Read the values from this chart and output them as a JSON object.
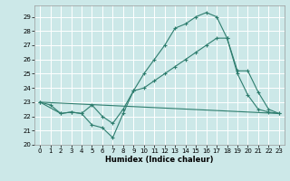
{
  "line1_x": [
    0,
    1,
    2,
    3,
    4,
    5,
    6,
    7,
    8,
    9,
    10,
    11,
    12,
    13,
    14,
    15,
    16,
    17,
    18,
    19,
    20,
    21,
    22,
    23
  ],
  "line1_y": [
    23.0,
    22.8,
    22.2,
    22.3,
    22.2,
    21.4,
    21.2,
    20.5,
    22.2,
    23.8,
    25.0,
    26.0,
    27.0,
    28.2,
    28.5,
    29.0,
    29.3,
    29.0,
    27.5,
    25.0,
    23.5,
    22.5,
    22.3,
    22.2
  ],
  "line2_x": [
    0,
    23
  ],
  "line2_y": [
    23.0,
    22.2
  ],
  "line3_x": [
    0,
    2,
    3,
    4,
    5,
    6,
    7,
    8,
    9,
    10,
    11,
    12,
    13,
    14,
    15,
    16,
    17,
    18,
    19,
    20,
    21,
    22,
    23
  ],
  "line3_y": [
    23.0,
    22.2,
    22.3,
    22.2,
    22.8,
    22.0,
    21.5,
    22.5,
    23.8,
    24.0,
    24.5,
    25.0,
    25.5,
    26.0,
    26.5,
    27.0,
    27.5,
    27.5,
    25.2,
    25.2,
    23.7,
    22.5,
    22.2
  ],
  "color": "#2e7d6e",
  "bg_color": "#cce8e8",
  "grid_color": "#ffffff",
  "xlabel": "Humidex (Indice chaleur)",
  "xlim": [
    -0.5,
    23.5
  ],
  "ylim": [
    20,
    29.8
  ],
  "yticks": [
    20,
    21,
    22,
    23,
    24,
    25,
    26,
    27,
    28,
    29
  ],
  "xticks": [
    0,
    1,
    2,
    3,
    4,
    5,
    6,
    7,
    8,
    9,
    10,
    11,
    12,
    13,
    14,
    15,
    16,
    17,
    18,
    19,
    20,
    21,
    22,
    23
  ],
  "marker": "+",
  "markersize": 3.5,
  "linewidth": 0.8,
  "tick_fontsize": 5.0,
  "xlabel_fontsize": 6.0
}
